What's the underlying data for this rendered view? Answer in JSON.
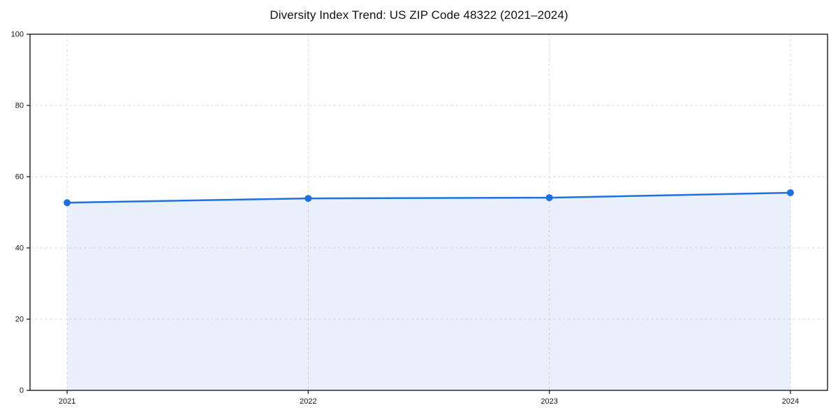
{
  "chart_data": {
    "type": "area",
    "title": "Diversity Index Trend: US ZIP Code 48322 (2021–2024)",
    "categories": [
      "2021",
      "2022",
      "2023",
      "2024"
    ],
    "series": [
      {
        "name": "Diversity Index",
        "values": [
          52.7,
          53.9,
          54.1,
          55.5
        ]
      }
    ],
    "xlabel": "",
    "ylabel": "",
    "ylim": [
      0,
      100
    ],
    "yticks": [
      0,
      20,
      40,
      60,
      80,
      100
    ],
    "grid": true,
    "grid_style": "dashed",
    "legend": "none",
    "colors": {
      "line": "#1f6fe0",
      "marker": "#1f6fe0",
      "fill": "#1f6fe0",
      "fill_opacity": 0.1,
      "grid": "#dedede",
      "spine": "#1c1c1c",
      "tick_label": "#141414",
      "title": "#111111",
      "background": "#ffffff"
    }
  }
}
